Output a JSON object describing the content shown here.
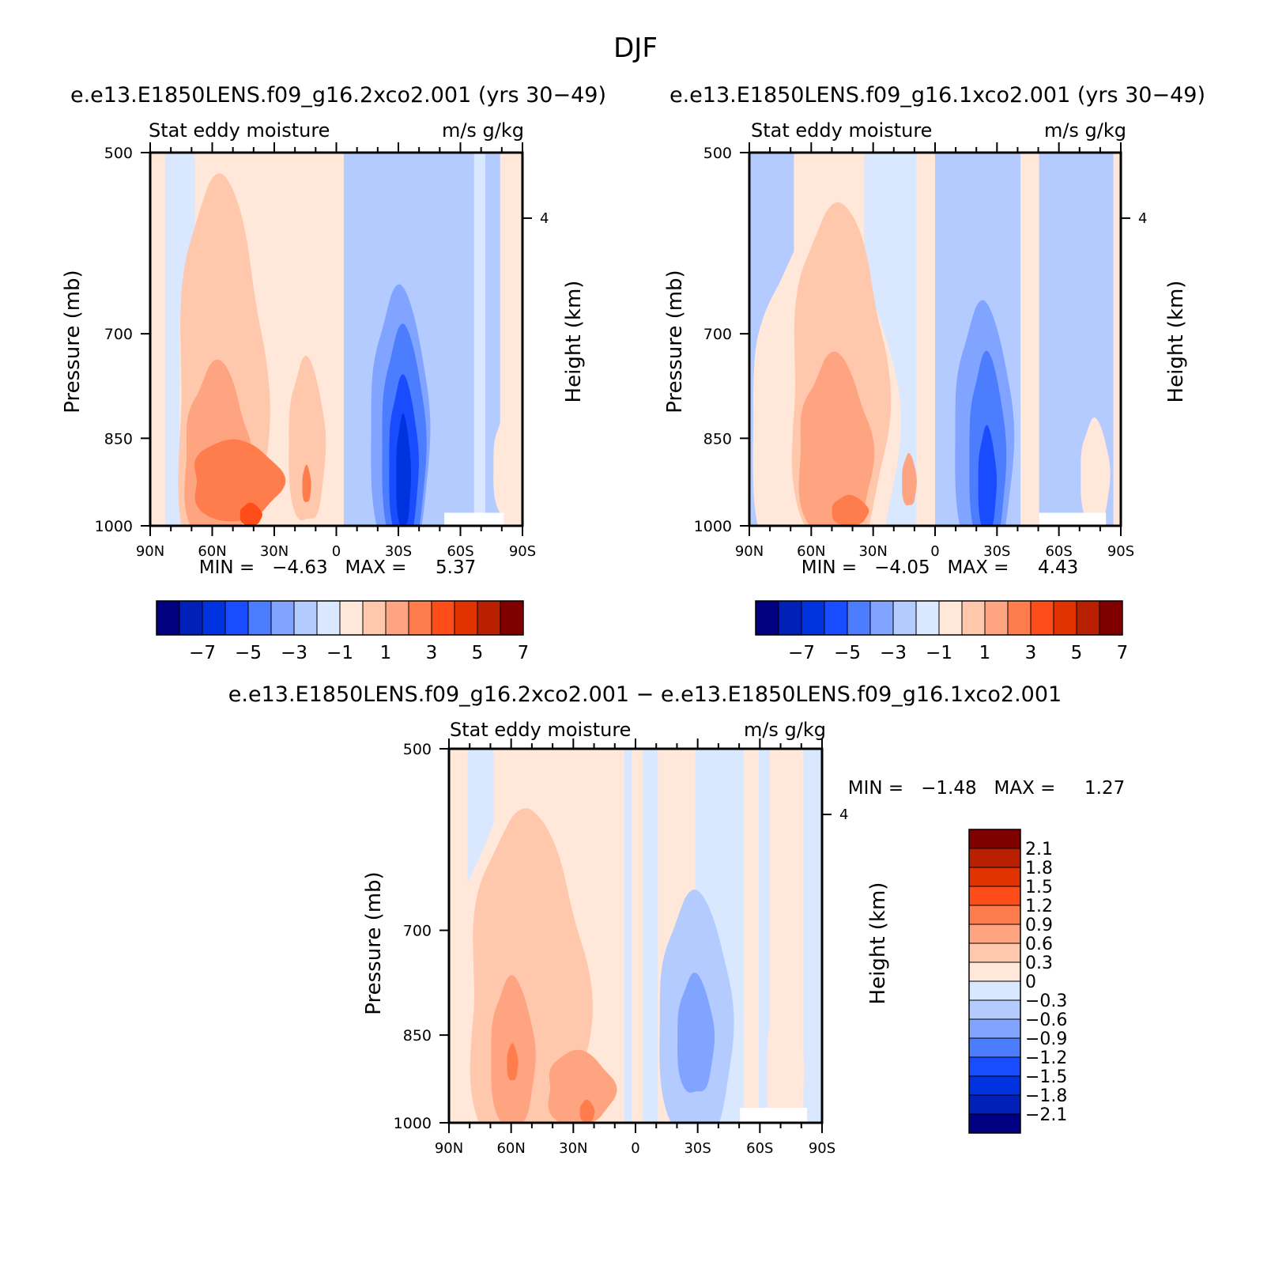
{
  "page": {
    "title": "DJF"
  },
  "palette": {
    "colors": [
      "#000080",
      "#0020b8",
      "#0033e0",
      "#1a4cff",
      "#4d7dff",
      "#80a4ff",
      "#b3cbff",
      "#d9e8ff",
      "#ffe8d9",
      "#ffc8ad",
      "#ffa480",
      "#ff7d4d",
      "#ff4d1a",
      "#e03300",
      "#b82000",
      "#800000"
    ]
  },
  "chart_data": [
    {
      "type": "heatmap",
      "title": "e.e13.E1850LENS.f09_g16.2xco2.001 (yrs 30−49)",
      "left_string": "Stat eddy moisture",
      "right_string": "m/s g/kg",
      "xlabel": "",
      "ylabel": "Pressure (mb)",
      "y2label": "Height (km)",
      "x_ticks": [
        "90N",
        "60N",
        "30N",
        "0",
        "30S",
        "60S",
        "90S"
      ],
      "y_ticks": [
        "500",
        "700",
        "850",
        "1000"
      ],
      "y2_ticks": [
        "4"
      ],
      "xlim": [
        90,
        -90
      ],
      "ylim": [
        1000,
        500
      ],
      "min_text": "MIN =   −4.63   MAX =     5.37",
      "min": -4.63,
      "max": 5.37,
      "colorbar_labels": [
        "−7",
        "−5",
        "−3",
        "−1",
        "1",
        "3",
        "5",
        "7"
      ]
    },
    {
      "type": "heatmap",
      "title": "e.e13.E1850LENS.f09_g16.1xco2.001 (yrs 30−49)",
      "left_string": "Stat eddy moisture",
      "right_string": "m/s g/kg",
      "xlabel": "",
      "ylabel": "Pressure (mb)",
      "y2label": "Height (km)",
      "x_ticks": [
        "90N",
        "60N",
        "30N",
        "0",
        "30S",
        "60S",
        "90S"
      ],
      "y_ticks": [
        "500",
        "700",
        "850",
        "1000"
      ],
      "y2_ticks": [
        "4"
      ],
      "xlim": [
        90,
        -90
      ],
      "ylim": [
        1000,
        500
      ],
      "min_text": "MIN =   −4.05   MAX =     4.43",
      "min": -4.05,
      "max": 4.43,
      "colorbar_labels": [
        "−7",
        "−5",
        "−3",
        "−1",
        "1",
        "3",
        "5",
        "7"
      ]
    },
    {
      "type": "heatmap",
      "title": "e.e13.E1850LENS.f09_g16.2xco2.001 − e.e13.E1850LENS.f09_g16.1xco2.001",
      "left_string": "Stat eddy moisture",
      "right_string": "m/s g/kg",
      "xlabel": "",
      "ylabel": "Pressure (mb)",
      "y2label": "Height (km)",
      "x_ticks": [
        "90N",
        "60N",
        "30N",
        "0",
        "30S",
        "60S",
        "90S"
      ],
      "y_ticks": [
        "500",
        "700",
        "850",
        "1000"
      ],
      "y2_ticks": [
        "4"
      ],
      "xlim": [
        90,
        -90
      ],
      "ylim": [
        1000,
        500
      ],
      "min_text": "MIN =   −1.48   MAX =     1.27",
      "min": -1.48,
      "max": 1.27,
      "colorbar_labels": [
        "2.1",
        "1.8",
        "1.5",
        "1.2",
        "0.9",
        "0.6",
        "0.3",
        "0",
        "−0.3",
        "−0.6",
        "−0.9",
        "−1.2",
        "−1.5",
        "−1.8",
        "−2.1"
      ]
    }
  ]
}
